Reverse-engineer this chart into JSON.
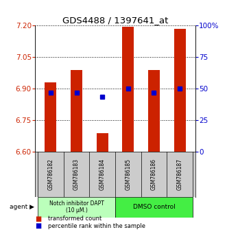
{
  "title": "GDS4488 / 1397641_at",
  "samples": [
    "GSM786182",
    "GSM786183",
    "GSM786184",
    "GSM786185",
    "GSM786186",
    "GSM786187"
  ],
  "bar_tops": [
    6.93,
    6.99,
    6.69,
    7.195,
    6.99,
    7.185
  ],
  "bar_bottom": 6.6,
  "blue_dot_values": [
    6.882,
    6.882,
    6.862,
    6.9,
    6.882,
    6.9
  ],
  "ylim_left": [
    6.6,
    7.2
  ],
  "yticks_left": [
    6.6,
    6.75,
    6.9,
    7.05,
    7.2
  ],
  "ylim_right": [
    0,
    100
  ],
  "yticks_right": [
    0,
    25,
    50,
    75,
    100
  ],
  "ytick_labels_right": [
    "0",
    "25",
    "50",
    "75",
    "100%"
  ],
  "bar_color": "#cc2200",
  "dot_color": "#0000cc",
  "group1_label": "Notch inhibitor DAPT\n(10 μM.)",
  "group2_label": "DMSO control",
  "group1_color": "#bbffbb",
  "group2_color": "#44ee44",
  "group1_samples": [
    0,
    1,
    2
  ],
  "group2_samples": [
    3,
    4,
    5
  ],
  "legend_bar_label": "transformed count",
  "legend_dot_label": "percentile rank within the sample",
  "bar_width": 0.45
}
